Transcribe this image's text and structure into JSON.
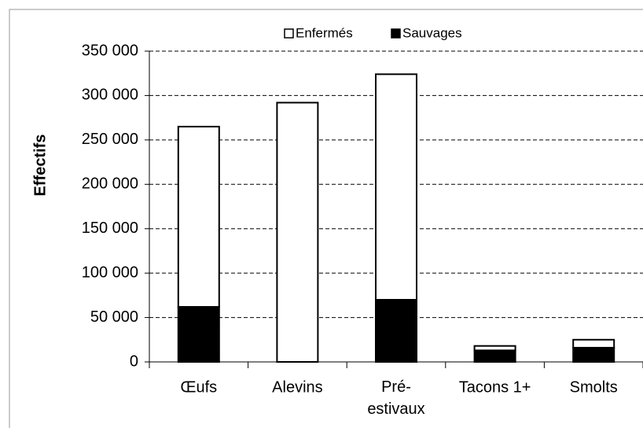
{
  "chart_data": {
    "type": "stacked-bar",
    "y_label": "Effectifs",
    "categories": [
      "Œufs",
      "Alevins",
      "Pré-estivaux",
      "Tacons 1+",
      "Smolts"
    ],
    "series": [
      {
        "name": "Sauvages",
        "color": "#000000",
        "values": [
          62000,
          0,
          70000,
          13000,
          16000
        ]
      },
      {
        "name": "Enfermés",
        "color": "#ffffff",
        "values": [
          203000,
          292000,
          254000,
          5000,
          9000
        ]
      }
    ],
    "ylim": [
      0,
      350000
    ],
    "yticks": [
      {
        "value": 0,
        "label": "0"
      },
      {
        "value": 50000,
        "label": "50 000"
      },
      {
        "value": 100000,
        "label": "100 000"
      },
      {
        "value": 150000,
        "label": "150 000"
      },
      {
        "value": 200000,
        "label": "200 000"
      },
      {
        "value": 250000,
        "label": "250 000"
      },
      {
        "value": 300000,
        "label": "300 000"
      },
      {
        "value": 350000,
        "label": "350 000"
      }
    ],
    "grid": true,
    "legend_position": "top"
  }
}
